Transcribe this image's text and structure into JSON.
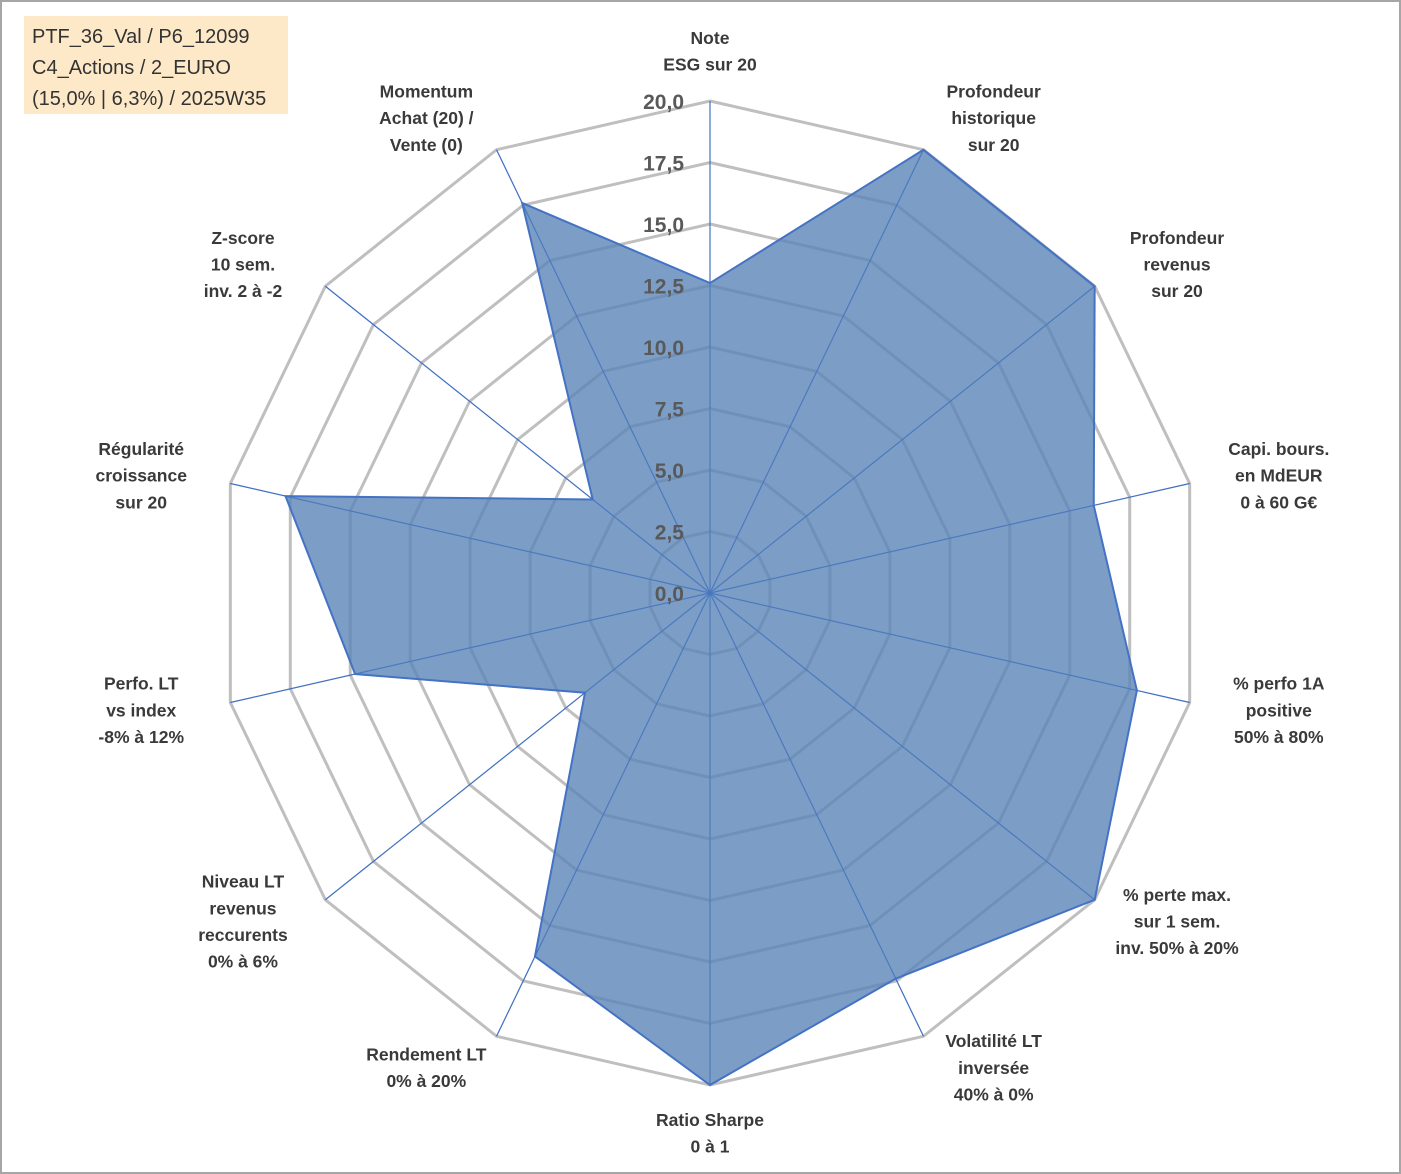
{
  "info_box": {
    "line1": "PTF_36_Val / P6_12099",
    "line2": "C4_Actions / 2_EURO",
    "line3": "(15,0% | 6,3%) / 2025W35"
  },
  "colors": {
    "fill": "#5b86b8",
    "fill_opacity": 0.8,
    "series_line": "#4472c4",
    "ring": "#bfbfbf",
    "spoke": "#4472c4",
    "info_background": "#fde9c8"
  },
  "chart_data": {
    "type": "radar",
    "title": "",
    "range": [
      0,
      20
    ],
    "ticks": [
      "0,0",
      "2,5",
      "5,0",
      "7,5",
      "10,0",
      "12,5",
      "15,0",
      "17,5",
      "20,0"
    ],
    "tick_values": [
      0,
      2.5,
      5,
      7.5,
      10,
      12.5,
      15,
      17.5,
      20
    ],
    "axes": [
      [
        "Note",
        "ESG sur 20"
      ],
      [
        "Profondeur",
        "historique",
        "sur 20"
      ],
      [
        "Profondeur",
        "revenus",
        "sur 20"
      ],
      [
        "Capi. bours.",
        "en MdEUR",
        "0 à 60 G€"
      ],
      [
        "% perfo 1A",
        "positive",
        "50% à 80%"
      ],
      [
        "% perte max.",
        "sur 1 sem.",
        "inv. 50% à 20%"
      ],
      [
        "Volatilité LT",
        "inversée",
        "40% à 0%"
      ],
      [
        "Ratio Sharpe",
        "0 à 1"
      ],
      [
        "Rendement LT",
        "0% à 20%"
      ],
      [
        "Niveau LT",
        "revenus",
        "reccurents",
        "0% à 6%"
      ],
      [
        "Perfo. LT",
        "vs index",
        "-8% à 12%"
      ],
      [
        "Régularité",
        "croissance",
        "sur 20"
      ],
      [
        "Z-score",
        "10 sem.",
        "inv. 2 à -2"
      ],
      [
        "Momentum",
        "Achat (20) /",
        "Vente (0)"
      ]
    ],
    "series": [
      {
        "values": [
          12.6,
          20.0,
          20.0,
          16.0,
          17.8,
          20.0,
          17.4,
          20.0,
          16.4,
          6.5,
          14.8,
          17.7,
          6.1,
          17.6
        ]
      }
    ]
  }
}
